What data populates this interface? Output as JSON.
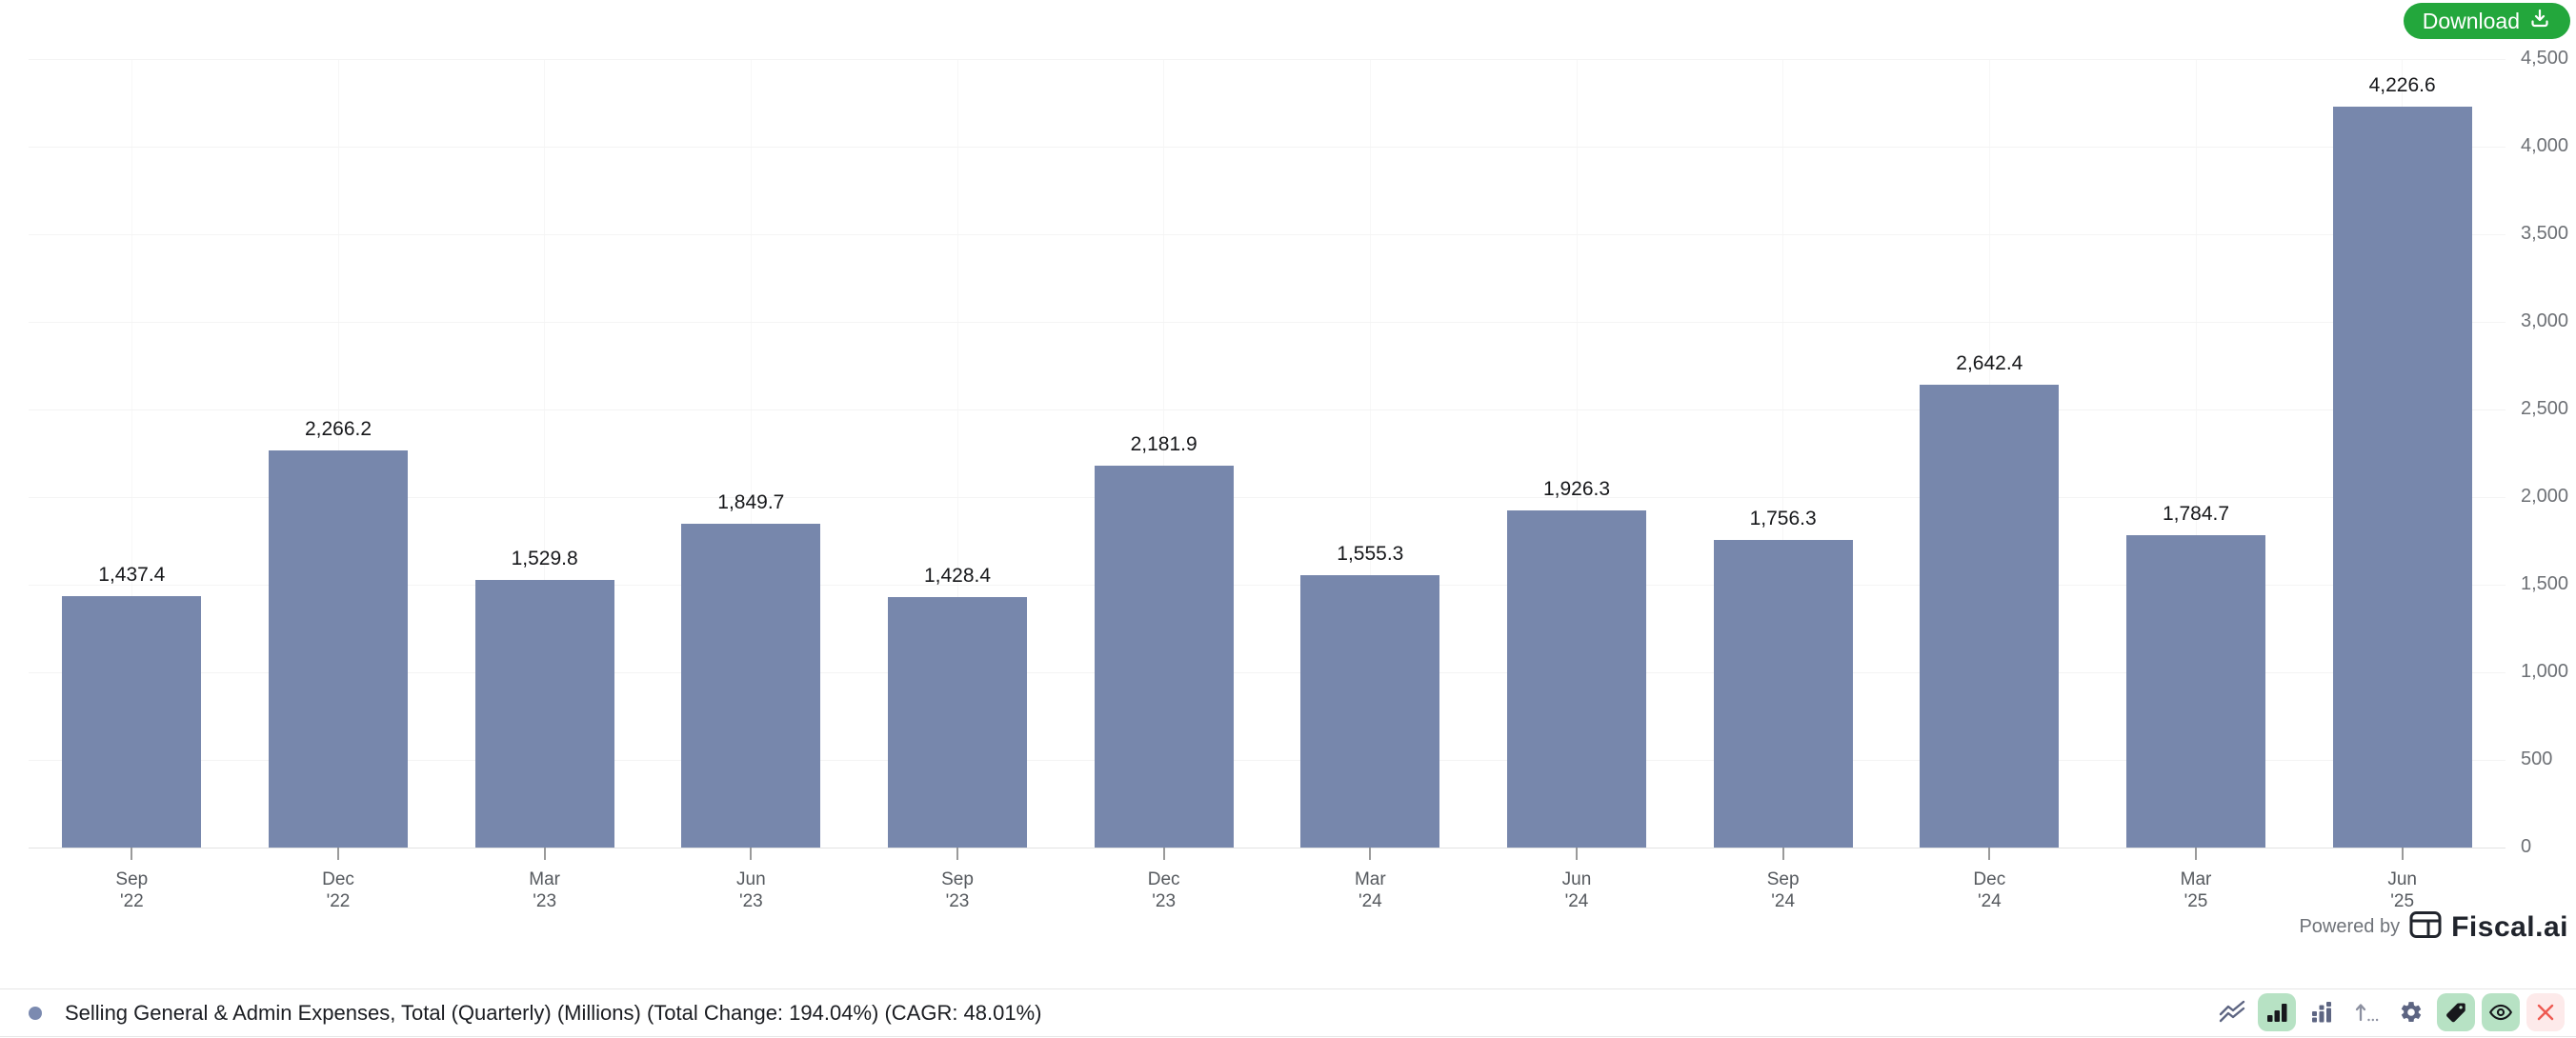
{
  "header": {
    "download_label": "Download"
  },
  "chart_data": {
    "type": "bar",
    "title": "Selling General & Admin Expenses, Total (Quarterly) (Millions)",
    "categories": [
      "Sep '22",
      "Dec '22",
      "Mar '23",
      "Jun '23",
      "Sep '23",
      "Dec '23",
      "Mar '24",
      "Jun '24",
      "Sep '24",
      "Dec '24",
      "Mar '25",
      "Jun '25"
    ],
    "cat_lines": [
      [
        "Sep",
        "'22"
      ],
      [
        "Dec",
        "'22"
      ],
      [
        "Mar",
        "'23"
      ],
      [
        "Jun",
        "'23"
      ],
      [
        "Sep",
        "'23"
      ],
      [
        "Dec",
        "'23"
      ],
      [
        "Mar",
        "'24"
      ],
      [
        "Jun",
        "'24"
      ],
      [
        "Sep",
        "'24"
      ],
      [
        "Dec",
        "'24"
      ],
      [
        "Mar",
        "'25"
      ],
      [
        "Jun",
        "'25"
      ]
    ],
    "values": [
      1437.4,
      2266.2,
      1529.8,
      1849.7,
      1428.4,
      2181.9,
      1555.3,
      1926.3,
      1756.3,
      2642.4,
      1784.7,
      4226.6
    ],
    "value_labels": [
      "1,437.4",
      "2,266.2",
      "1,529.8",
      "1,849.7",
      "1,428.4",
      "2,181.9",
      "1,555.3",
      "1,926.3",
      "1,756.3",
      "2,642.4",
      "1,784.7",
      "4,226.6"
    ],
    "xlabel": "",
    "ylabel": "",
    "ylim": [
      0,
      4500
    ],
    "y_tick_step": 500,
    "y_tick_labels": [
      "0",
      "500",
      "1,000",
      "1,500",
      "2,000",
      "2,500",
      "3,000",
      "3,500",
      "4,000",
      "4,500"
    ],
    "grid": true,
    "legend_position": "bottom",
    "bar_color": "#7787ac",
    "total_change": "194.04%",
    "cagr": "48.01%"
  },
  "footer": {
    "powered_by": "Powered by",
    "brand": "Fiscal.ai"
  },
  "legend": {
    "label": "Selling General & Admin Expenses, Total (Quarterly) (Millions) (Total Change: 194.04%) (CAGR: 48.01%)",
    "dot_color": "#7b8ab0"
  },
  "toolbar": {
    "icon_names": [
      "trend-lines-icon",
      "bar-chart-icon",
      "grouped-bars-icon",
      "sort-arrow-icon",
      "settings-gear-icon",
      "tag-icon",
      "eye-icon",
      "close-icon"
    ],
    "chip_green": "#b7e2c4",
    "chip_pink": "#fdeaea",
    "close_color": "#ee5a52",
    "icon_color": "#5d6582"
  }
}
